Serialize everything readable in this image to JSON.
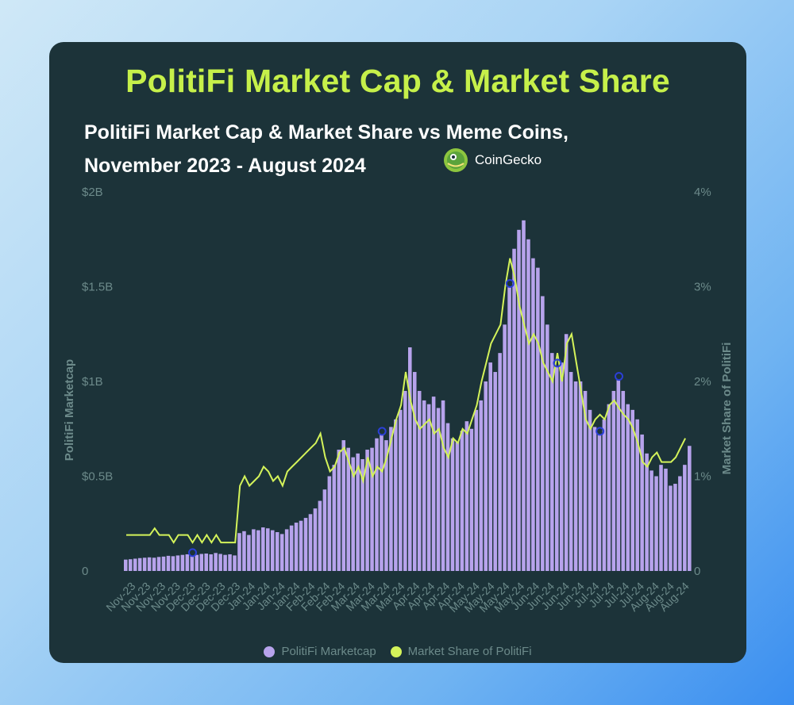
{
  "title": "PolitiFi Market Cap & Market Share",
  "subtitle_line1": "PolitiFi Market Cap & Market Share vs Meme Coins,",
  "subtitle_line2": "November 2023 - August 2024",
  "brand": {
    "name": "CoinGecko",
    "icon": "gecko-logo-icon"
  },
  "colors": {
    "bars": "#b7a3ec",
    "line": "#d4f35a",
    "markers": "#2b3fd6",
    "title": "#c6f04a"
  },
  "chart_data": {
    "type": "bar",
    "title": "PolitiFi Market Cap & Market Share",
    "ylabel": "PolitiFi Marketcap",
    "y2label": "Market Share of PolitiFi",
    "ylim": [
      0,
      2000000000
    ],
    "y2lim": [
      0,
      4
    ],
    "y_ticks": [
      "0",
      "$0.5B",
      "$1B",
      "$1.5B",
      "$2B"
    ],
    "y2_ticks": [
      "0",
      "1%",
      "2%",
      "3%",
      "4%"
    ],
    "x_ticks": [
      "Nov-23",
      "Nov-23",
      "Nov-23",
      "Nov-23",
      "Dec-23",
      "Dec-23",
      "Dec-23",
      "Dec-23",
      "Jan-24",
      "Jan-24",
      "Jan-24",
      "Jan-24",
      "Feb-24",
      "Feb-24",
      "Feb-24",
      "Mar-24",
      "Mar-24",
      "Mar-24",
      "Mar-24",
      "Apr-24",
      "Apr-24",
      "Apr-24",
      "Apr-24",
      "May-24",
      "May-24",
      "May-24",
      "May-24",
      "Jun-24",
      "Jun-24",
      "Jun-24",
      "Jun-24",
      "Jul-24",
      "Jul-24",
      "Jul-24",
      "Jul-24",
      "Aug-24",
      "Aug-24",
      "Aug-24"
    ],
    "grid": false,
    "legend_position": "bottom",
    "series": [
      {
        "name": "PolitiFi Marketcap",
        "type": "bar",
        "axis": "left",
        "values": [
          60000000,
          62000000,
          65000000,
          68000000,
          70000000,
          72000000,
          70000000,
          74000000,
          76000000,
          80000000,
          78000000,
          82000000,
          85000000,
          88000000,
          80000000,
          85000000,
          90000000,
          92000000,
          88000000,
          95000000,
          90000000,
          85000000,
          88000000,
          82000000,
          200000000,
          210000000,
          190000000,
          220000000,
          215000000,
          230000000,
          225000000,
          215000000,
          205000000,
          195000000,
          220000000,
          240000000,
          255000000,
          265000000,
          280000000,
          300000000,
          330000000,
          370000000,
          430000000,
          500000000,
          560000000,
          640000000,
          690000000,
          650000000,
          600000000,
          620000000,
          590000000,
          640000000,
          650000000,
          700000000,
          720000000,
          690000000,
          760000000,
          800000000,
          850000000,
          950000000,
          1180000000,
          1050000000,
          950000000,
          900000000,
          880000000,
          920000000,
          860000000,
          900000000,
          780000000,
          700000000,
          680000000,
          740000000,
          790000000,
          750000000,
          850000000,
          900000000,
          1000000000,
          1100000000,
          1050000000,
          1150000000,
          1300000000,
          1500000000,
          1700000000,
          1800000000,
          1850000000,
          1750000000,
          1650000000,
          1600000000,
          1450000000,
          1300000000,
          1150000000,
          1080000000,
          1100000000,
          1250000000,
          1050000000,
          1000000000,
          1000000000,
          950000000,
          850000000,
          760000000,
          720000000,
          800000000,
          880000000,
          950000000,
          1010000000,
          950000000,
          880000000,
          850000000,
          800000000,
          720000000,
          620000000,
          530000000,
          500000000,
          560000000,
          540000000,
          450000000,
          460000000,
          500000000,
          560000000,
          660000000
        ]
      },
      {
        "name": "Market Share of PolitiFi",
        "type": "line",
        "axis": "right",
        "values": [
          0.38,
          0.38,
          0.38,
          0.38,
          0.38,
          0.38,
          0.45,
          0.38,
          0.38,
          0.38,
          0.3,
          0.38,
          0.38,
          0.38,
          0.3,
          0.38,
          0.3,
          0.38,
          0.3,
          0.38,
          0.3,
          0.3,
          0.3,
          0.3,
          0.9,
          1.0,
          0.9,
          0.95,
          1.0,
          1.1,
          1.05,
          0.95,
          1.0,
          0.9,
          1.05,
          1.1,
          1.15,
          1.2,
          1.25,
          1.3,
          1.35,
          1.45,
          1.2,
          1.05,
          1.1,
          1.25,
          1.3,
          1.15,
          1.0,
          1.1,
          0.95,
          1.2,
          1.0,
          1.1,
          1.05,
          1.2,
          1.4,
          1.6,
          1.75,
          2.1,
          1.8,
          1.6,
          1.5,
          1.55,
          1.6,
          1.45,
          1.5,
          1.3,
          1.2,
          1.4,
          1.35,
          1.5,
          1.45,
          1.6,
          1.75,
          2.0,
          2.2,
          2.4,
          2.5,
          2.6,
          3.0,
          3.3,
          3.1,
          2.8,
          2.6,
          2.4,
          2.5,
          2.4,
          2.2,
          2.1,
          2.0,
          2.3,
          2.0,
          2.4,
          2.5,
          2.2,
          1.9,
          1.6,
          1.5,
          1.6,
          1.65,
          1.6,
          1.75,
          1.8,
          1.72,
          1.65,
          1.6,
          1.5,
          1.35,
          1.15,
          1.1,
          1.2,
          1.25,
          1.15,
          1.15,
          1.15,
          1.2,
          1.3,
          1.4
        ]
      }
    ],
    "markers": [
      14,
      54,
      81,
      91,
      100,
      104
    ]
  },
  "legend": {
    "bars_label": "PolitiFi Marketcap",
    "line_label": "Market Share of PolitiFi"
  }
}
